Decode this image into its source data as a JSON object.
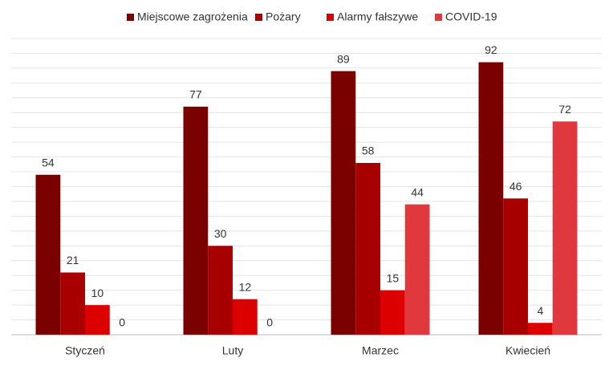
{
  "chart_data": {
    "type": "bar",
    "categories": [
      "Styczeń",
      "Luty",
      "Marzec",
      "Kwiecień"
    ],
    "series": [
      {
        "name": "Miejscowe zagrożenia",
        "color": "#7b0000",
        "values": [
          54,
          77,
          89,
          92
        ]
      },
      {
        "name": "Pożary",
        "color": "#a80000",
        "values": [
          21,
          30,
          58,
          46
        ]
      },
      {
        "name": "Alarmy fałszywe",
        "color": "#dd0000",
        "values": [
          10,
          12,
          15,
          4
        ]
      },
      {
        "name": "COVID-19",
        "color": "#e0383d",
        "values": [
          0,
          0,
          44,
          72
        ]
      }
    ],
    "ylim": [
      0,
      100
    ],
    "yticks": [
      0,
      5,
      10,
      15,
      20,
      25,
      30,
      35,
      40,
      45,
      50,
      55,
      60,
      65,
      70,
      75,
      80,
      85,
      90,
      95,
      100
    ],
    "grid": true,
    "legend": "top"
  }
}
